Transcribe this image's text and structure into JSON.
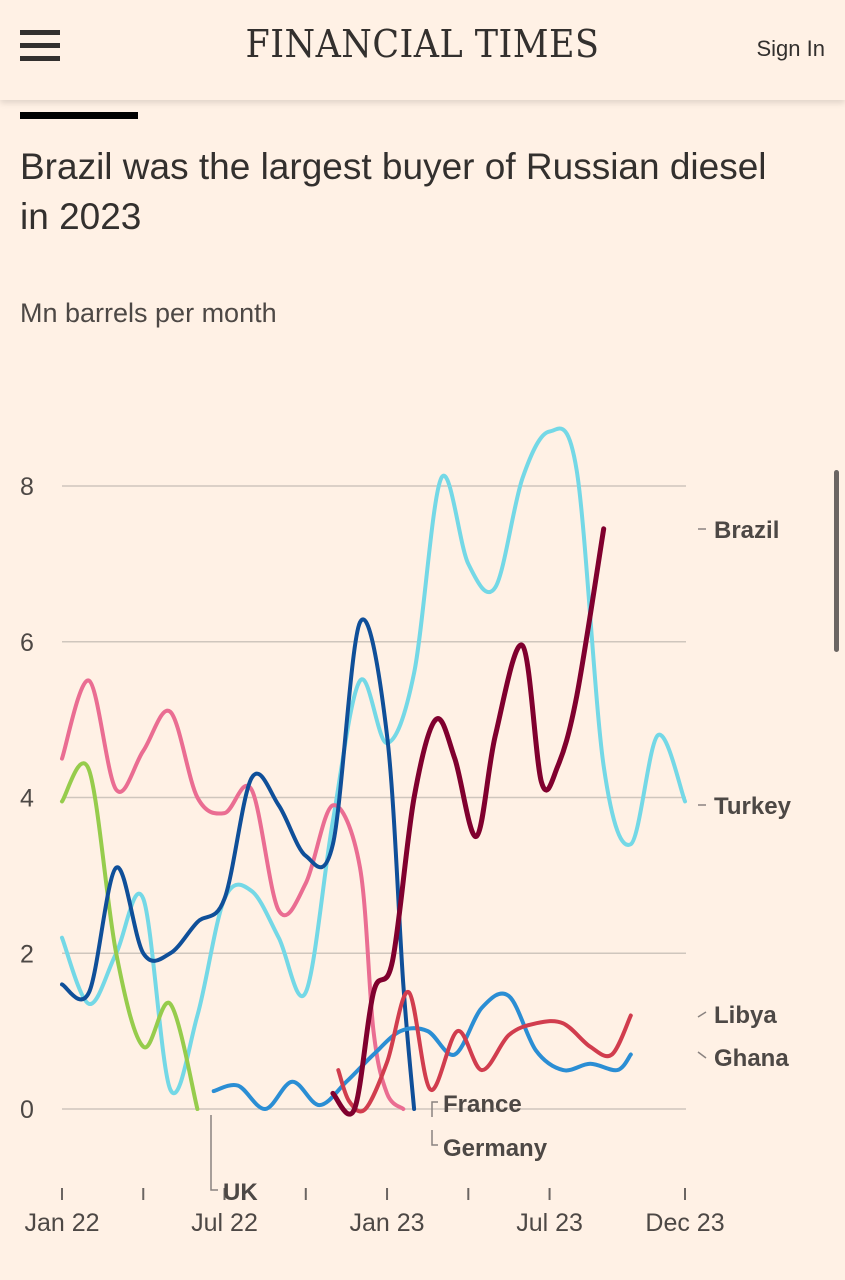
{
  "header": {
    "logo": "FINANCIAL TIMES",
    "signin": "Sign In"
  },
  "colors": {
    "background": "#FFF1E5",
    "grid": "#CFC6BD"
  },
  "chart_data": {
    "type": "line",
    "title": "Brazil was the largest buyer of Russian diesel in 2023",
    "ylabel": "Mn barrels per month",
    "ylim": [
      0,
      8
    ],
    "yticks": [
      {
        "v": 0,
        "label": "0"
      },
      {
        "v": 2,
        "label": "2"
      },
      {
        "v": 4,
        "label": "4"
      },
      {
        "v": 6,
        "label": "6"
      },
      {
        "v": 8,
        "label": "8"
      }
    ],
    "xrange": [
      0,
      23
    ],
    "xticks": [
      {
        "v": 0,
        "label": "Jan 22"
      },
      {
        "v": 3,
        "label": ""
      },
      {
        "v": 6,
        "label": "Jul 22"
      },
      {
        "v": 9,
        "label": ""
      },
      {
        "v": 12,
        "label": "Jan 23"
      },
      {
        "v": 15,
        "label": ""
      },
      {
        "v": 18,
        "label": "Jul 23"
      },
      {
        "v": 23,
        "label": "Dec 23"
      }
    ],
    "series": [
      {
        "name": "Turkey",
        "color": "#74D8E6",
        "width": 4,
        "points": [
          [
            0,
            2.2
          ],
          [
            1,
            1.35
          ],
          [
            2,
            2.0
          ],
          [
            3,
            2.7
          ],
          [
            4,
            0.25
          ],
          [
            5,
            1.2
          ],
          [
            6,
            2.7
          ],
          [
            7,
            2.8
          ],
          [
            8,
            2.2
          ],
          [
            9,
            1.5
          ],
          [
            10,
            3.7
          ],
          [
            11,
            5.5
          ],
          [
            12,
            4.7
          ],
          [
            13,
            5.6
          ],
          [
            14,
            8.1
          ],
          [
            15,
            7.0
          ],
          [
            16,
            6.7
          ],
          [
            17,
            8.1
          ],
          [
            18,
            8.7
          ],
          [
            19,
            8.2
          ],
          [
            20,
            4.4
          ],
          [
            21,
            3.4
          ],
          [
            22,
            4.8
          ],
          [
            23,
            3.95
          ]
        ]
      },
      {
        "name": "France",
        "color": "#EA6D92",
        "width": 4,
        "points": [
          [
            0,
            4.5
          ],
          [
            1,
            5.5
          ],
          [
            2,
            4.1
          ],
          [
            3,
            4.6
          ],
          [
            4,
            5.1
          ],
          [
            5,
            4.0
          ],
          [
            6,
            3.8
          ],
          [
            7,
            4.1
          ],
          [
            8,
            2.55
          ],
          [
            9,
            2.9
          ],
          [
            10,
            3.9
          ],
          [
            11,
            3.1
          ],
          [
            11.5,
            1.0
          ],
          [
            12,
            0.2
          ],
          [
            12.6,
            0.0
          ]
        ]
      },
      {
        "name": "UK",
        "color": "#96CC4C",
        "width": 4,
        "points": [
          [
            0,
            3.95
          ],
          [
            1,
            4.35
          ],
          [
            2,
            2.0
          ],
          [
            3,
            0.8
          ],
          [
            4,
            1.35
          ],
          [
            5,
            0.0
          ]
        ]
      },
      {
        "name": "Germany",
        "color": "#0F4F99",
        "width": 4,
        "points": [
          [
            0,
            1.6
          ],
          [
            1,
            1.5
          ],
          [
            2,
            3.1
          ],
          [
            3,
            2.0
          ],
          [
            4,
            2.0
          ],
          [
            5,
            2.4
          ],
          [
            6,
            2.7
          ],
          [
            7,
            4.25
          ],
          [
            8,
            3.9
          ],
          [
            9,
            3.25
          ],
          [
            10,
            3.4
          ],
          [
            11,
            6.25
          ],
          [
            12,
            4.8
          ],
          [
            12.6,
            1.6
          ],
          [
            13,
            0.0
          ]
        ]
      },
      {
        "name": "Ghana",
        "color": "#2B8ED4",
        "width": 4,
        "points": [
          [
            5.6,
            0.23
          ],
          [
            6.5,
            0.3
          ],
          [
            7.5,
            0.0
          ],
          [
            8.5,
            0.35
          ],
          [
            9.5,
            0.05
          ],
          [
            10.5,
            0.35
          ],
          [
            11.5,
            0.7
          ],
          [
            12.5,
            1.0
          ],
          [
            13.5,
            1.0
          ],
          [
            14.5,
            0.7
          ],
          [
            15.5,
            1.3
          ],
          [
            16.5,
            1.45
          ],
          [
            17.5,
            0.75
          ],
          [
            18.5,
            0.5
          ],
          [
            19.5,
            0.58
          ],
          [
            20.5,
            0.5
          ],
          [
            21,
            0.7
          ]
        ]
      },
      {
        "name": "Libya",
        "color": "#D13D4E",
        "width": 4,
        "points": [
          [
            10.2,
            0.5
          ],
          [
            10.6,
            0.1
          ],
          [
            11.2,
            0.0
          ],
          [
            12,
            0.6
          ],
          [
            12.8,
            1.5
          ],
          [
            13.6,
            0.25
          ],
          [
            14.6,
            1.0
          ],
          [
            15.5,
            0.5
          ],
          [
            16.5,
            0.95
          ],
          [
            17.5,
            1.1
          ],
          [
            18.5,
            1.1
          ],
          [
            19.5,
            0.8
          ],
          [
            20.3,
            0.7
          ],
          [
            21,
            1.2
          ]
        ]
      },
      {
        "name": "Brazil",
        "color": "#80002E",
        "width": 5,
        "points": [
          [
            10,
            0.2
          ],
          [
            10.8,
            0.0
          ],
          [
            11.5,
            1.5
          ],
          [
            12.2,
            1.9
          ],
          [
            13,
            4.0
          ],
          [
            13.8,
            5.0
          ],
          [
            14.5,
            4.5
          ],
          [
            15.3,
            3.5
          ],
          [
            16,
            4.8
          ],
          [
            17,
            5.95
          ],
          [
            17.7,
            4.2
          ],
          [
            18.3,
            4.4
          ],
          [
            19,
            5.3
          ],
          [
            20,
            7.45
          ]
        ]
      }
    ],
    "labels": [
      {
        "text": "Brazil",
        "series": "Brazil"
      },
      {
        "text": "Turkey",
        "series": "Turkey"
      },
      {
        "text": "Libya",
        "series": "Libya"
      },
      {
        "text": "Ghana",
        "series": "Ghana"
      },
      {
        "text": "France",
        "series": "France"
      },
      {
        "text": "Germany",
        "series": "Germany"
      },
      {
        "text": "UK",
        "series": "UK"
      }
    ]
  }
}
